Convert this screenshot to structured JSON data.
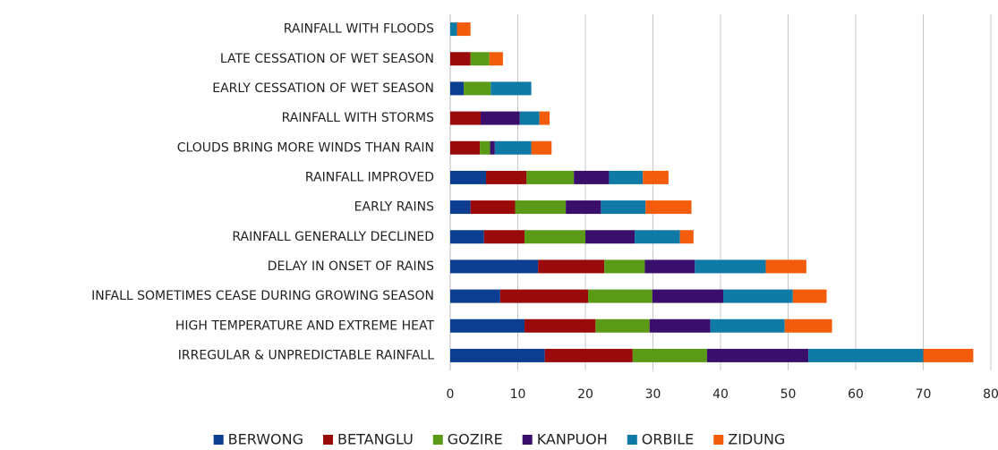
{
  "chart_data": {
    "type": "stacked-bar-horizontal",
    "categories": [
      "RAINFALL WITH FLOODS",
      "LATE CESSATION OF WET SEASON",
      "EARLY CESSATION OF WET SEASON",
      "RAINFALL WITH STORMS",
      "CLOUDS BRING MORE WINDS THAN RAIN",
      "RAINFALL IMPROVED",
      "EARLY RAINS",
      "RAINFALL GENERALLY DECLINED",
      "DELAY IN ONSET OF RAINS",
      "INFALL  SOMETIMES CEASE DURING GROWING SEASON",
      "HIGH TEMPERATURE AND EXTREME HEAT",
      "IRREGULAR & UNPREDICTABLE RAINFALL"
    ],
    "series": [
      {
        "name": "BERWONG",
        "color": "#0b3d91",
        "values": [
          0,
          0,
          2,
          0,
          0,
          5.3,
          3,
          5,
          13,
          7.4,
          11,
          14
        ]
      },
      {
        "name": "BETANGLU",
        "color": "#9b0a0a",
        "values": [
          0,
          3,
          0,
          4.5,
          4.4,
          6,
          6.6,
          6,
          9.8,
          13,
          10.5,
          13
        ]
      },
      {
        "name": "GOZIRE",
        "color": "#5b9a16",
        "values": [
          0,
          2.8,
          4,
          0,
          1.5,
          7,
          7.5,
          9,
          6,
          9.5,
          8,
          11
        ]
      },
      {
        "name": "KANPUOH",
        "color": "#3a0f6b",
        "values": [
          0,
          0,
          0,
          5.8,
          0.7,
          5.2,
          5.2,
          7.3,
          7.4,
          10.5,
          9,
          15
        ]
      },
      {
        "name": "ORBILE",
        "color": "#0f7aa6",
        "values": [
          1,
          0,
          6,
          2.9,
          5.4,
          5,
          6.6,
          6.7,
          10.5,
          10.3,
          11,
          17
        ]
      },
      {
        "name": "ZIDUNG",
        "color": "#f25c0a",
        "values": [
          2,
          2,
          0,
          1.5,
          3,
          3.8,
          6.8,
          2,
          6,
          5,
          7,
          7.4
        ]
      }
    ],
    "xlim": [
      0,
      80
    ],
    "xticks": [
      0,
      10,
      20,
      30,
      40,
      50,
      60,
      70,
      80
    ],
    "grid": true
  }
}
